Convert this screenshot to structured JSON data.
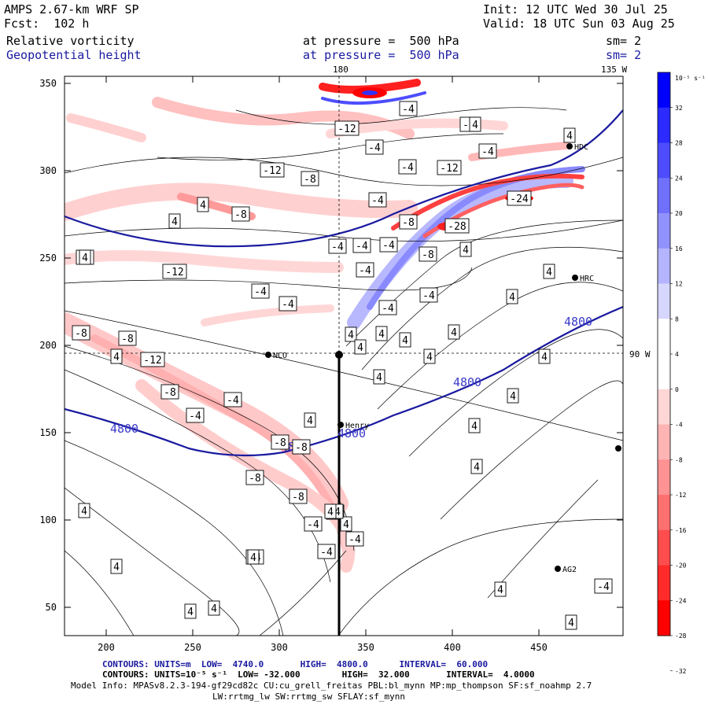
{
  "header": {
    "model": "AMPS 2.67-km WRF SP",
    "fcst": "Fcst:  102 h",
    "init": "Init: 12 UTC Wed 30 Jul 25",
    "valid": "Valid: 18 UTC Sun 03 Aug 25",
    "field1": "Relative vorticity",
    "field2": "Geopotential height",
    "level1": "at pressure =  500 hPa",
    "level2": "at pressure =  500 hPa",
    "sm1": "sm= 2",
    "sm2": "sm= 2",
    "lon_top": "180",
    "lon_top_right": "135 W",
    "lon_right": "90 W"
  },
  "axes": {
    "x_ticks": [
      "200",
      "250",
      "300",
      "350",
      "400",
      "450"
    ],
    "y_ticks": [
      "350",
      "300",
      "250",
      "200",
      "150",
      "100",
      "50"
    ]
  },
  "colorbar": {
    "unit": "10⁻⁵ s⁻¹",
    "labels": [
      "32",
      "28",
      "24",
      "20",
      "16",
      "12",
      "8",
      "4",
      "0",
      "-4",
      "-8",
      "-12",
      "-16",
      "-20",
      "-24",
      "-28",
      "-32"
    ],
    "colors": [
      "#0000ff",
      "#2b2bff",
      "#4d4dff",
      "#7070ff",
      "#9292ff",
      "#b4b4ff",
      "#d6d6ff",
      "#ffffff",
      "#ffffff",
      "#ffd6d6",
      "#ffb4b4",
      "#ff9292",
      "#ff7070",
      "#ff4d4d",
      "#ff2b2b",
      "#ff0000"
    ]
  },
  "stations": [
    {
      "label": "NCO"
    },
    {
      "label": "Henry"
    },
    {
      "label": "HRC"
    },
    {
      "label": "HDC"
    },
    {
      "label": "AG2"
    }
  ],
  "height_labels": [
    "4800",
    "4800",
    "4800",
    "4800",
    "4800"
  ],
  "vort_labels": [
    "-8",
    "-12",
    "-8",
    "-8",
    "-4",
    "-4",
    "-8",
    "-8",
    "-12",
    "-4",
    "-12",
    "-8",
    "-4",
    "-4",
    "-8",
    "-8",
    "-8",
    "-4",
    "-8",
    "-4",
    "-4",
    "-4",
    "-8",
    "-4",
    "-4",
    "-4",
    "-4",
    "-8",
    "-4",
    "-4",
    "-4",
    "-4",
    "-24",
    "-4",
    "-12",
    "-28",
    "-8",
    "-12",
    "-4",
    "-4",
    "-4",
    "4",
    "4",
    "4",
    "4",
    "4",
    "4",
    "4",
    "4",
    "4",
    "4",
    "4",
    "4",
    "4",
    "4",
    "4",
    "4",
    "4",
    "4",
    "4",
    "4",
    "4",
    "4",
    "4",
    "4",
    "4",
    "4",
    "4",
    "4",
    "4",
    "4",
    "4"
  ],
  "footer": {
    "line1": "CONTOURS: UNITS=m  LOW=  4740.0       HIGH=  4800.0      INTERVAL=  60.000",
    "line2": "CONTOURS: UNITS=10⁻⁵ s⁻¹  LOW= -32.000        HIGH=  32.000       INTERVAL=  4.0000",
    "line3": "Model Info: MPASv8.2.3-194-gf29cd82c CU:cu_grell_freitas PBL:bl_mynn MP:mp_thompson SF:sf_noahmp 2.7",
    "line4": "LW:rrtmg_lw SW:rrtmg_sw SFLAY:sf_mynn"
  }
}
